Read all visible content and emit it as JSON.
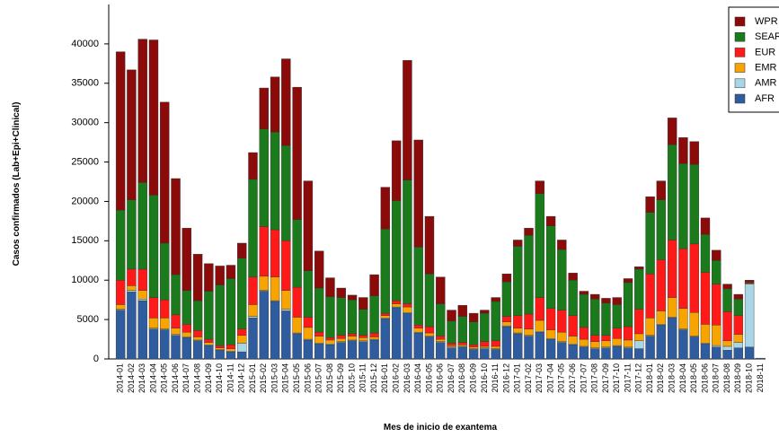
{
  "chart_data": {
    "type": "stacked_bar",
    "y_label": "Casos confirmados  (Lab+Epi+Clinical)",
    "x_label": "Mes de inicio de exantema",
    "categories": [
      "2014-01",
      "2014-02",
      "2014-03",
      "2014-04",
      "2014-05",
      "2014-06",
      "2014-07",
      "2014-08",
      "2014-09",
      "2014-10",
      "2014-11",
      "2014-12",
      "2015-01",
      "2015-02",
      "2015-03",
      "2015-04",
      "2015-05",
      "2015-06",
      "2015-07",
      "2015-08",
      "2015-09",
      "2015-10",
      "2015-11",
      "2015-12",
      "2016-01",
      "2016-02",
      "2016-03",
      "2016-04",
      "2016-05",
      "2016-06",
      "2016-07",
      "2016-08",
      "2016-09",
      "2016-10",
      "2016-11",
      "2016-12",
      "2017-01",
      "2017-02",
      "2017-03",
      "2017-04",
      "2017-05",
      "2017-06",
      "2017-07",
      "2017-08",
      "2017-09",
      "2017-10",
      "2017-11",
      "2017-12",
      "2018-01",
      "2018-02",
      "2018-03",
      "2018-04",
      "2018-05",
      "2018-06",
      "2018-07",
      "2018-08",
      "2018-09",
      "2018-10",
      "2018-11"
    ],
    "series": [
      {
        "name": "AFR",
        "color": "#2f5c9e",
        "values": [
          6200,
          8500,
          7400,
          3800,
          3700,
          3000,
          2700,
          2300,
          1700,
          1100,
          900,
          900,
          5200,
          8600,
          7300,
          6100,
          3200,
          2400,
          1900,
          1800,
          2100,
          2300,
          2200,
          2400,
          5100,
          6500,
          5800,
          3300,
          2800,
          2100,
          1400,
          1500,
          1200,
          1300,
          1200,
          4100,
          3200,
          2900,
          3400,
          2500,
          2100,
          1800,
          1500,
          1300,
          1400,
          1600,
          1400,
          1300,
          2900,
          4300,
          5200,
          3700,
          2800,
          1900,
          1500,
          1100,
          1400,
          1500,
          100
        ]
      },
      {
        "name": "AMR",
        "color": "#a9d6e6",
        "values": [
          100,
          200,
          200,
          100,
          100,
          100,
          100,
          100,
          100,
          100,
          100,
          1100,
          200,
          100,
          100,
          200,
          100,
          100,
          100,
          100,
          100,
          100,
          100,
          100,
          100,
          100,
          100,
          100,
          100,
          100,
          100,
          100,
          100,
          100,
          100,
          100,
          100,
          100,
          100,
          100,
          100,
          100,
          100,
          100,
          100,
          100,
          100,
          1000,
          100,
          100,
          100,
          100,
          100,
          100,
          200,
          500,
          700,
          8000,
          0
        ]
      },
      {
        "name": "EMR",
        "color": "#f7a300",
        "values": [
          600,
          600,
          1100,
          1300,
          1400,
          800,
          600,
          400,
          300,
          200,
          300,
          1000,
          1500,
          1800,
          3000,
          2400,
          2000,
          1500,
          900,
          500,
          400,
          500,
          400,
          300,
          300,
          400,
          700,
          500,
          400,
          300,
          200,
          200,
          200,
          200,
          300,
          500,
          600,
          800,
          1400,
          1100,
          1200,
          1000,
          900,
          800,
          800,
          900,
          900,
          900,
          2200,
          1700,
          2500,
          2600,
          3000,
          2400,
          2600,
          700,
          1000,
          100,
          0
        ]
      },
      {
        "name": "EUR",
        "color": "#ff1a1a",
        "values": [
          3100,
          2100,
          2700,
          2600,
          2300,
          1700,
          1000,
          800,
          400,
          300,
          500,
          800,
          3500,
          6300,
          6000,
          6300,
          3800,
          1300,
          500,
          300,
          400,
          300,
          300,
          500,
          300,
          400,
          400,
          400,
          800,
          400,
          300,
          300,
          300,
          600,
          700,
          700,
          1600,
          1900,
          2900,
          2700,
          2800,
          2600,
          1500,
          800,
          700,
          1300,
          1700,
          3100,
          5600,
          6500,
          7300,
          7600,
          8700,
          6600,
          5200,
          3700,
          2400,
          100,
          0
        ]
      },
      {
        "name": "SEAR",
        "color": "#1b7a1b",
        "values": [
          8900,
          8800,
          11000,
          13000,
          7200,
          5100,
          4300,
          3800,
          6100,
          7700,
          8400,
          9000,
          12400,
          12400,
          12400,
          12100,
          8600,
          5900,
          5600,
          5200,
          4800,
          4300,
          3300,
          4700,
          10700,
          12700,
          15700,
          9900,
          6700,
          4100,
          2800,
          3300,
          2900,
          3600,
          5000,
          4400,
          8800,
          10000,
          13200,
          10500,
          7700,
          4500,
          4200,
          4600,
          4100,
          3000,
          5600,
          5100,
          7800,
          7600,
          12100,
          10800,
          10100,
          4800,
          3000,
          2900,
          2100,
          100,
          0
        ]
      },
      {
        "name": "WPR",
        "color": "#8b0a0a",
        "values": [
          20100,
          16500,
          18200,
          19700,
          17900,
          12200,
          7900,
          5900,
          3500,
          2400,
          1700,
          1900,
          3400,
          5200,
          7000,
          11000,
          16800,
          11400,
          4700,
          2400,
          1200,
          600,
          1500,
          2700,
          5300,
          7600,
          15200,
          13600,
          7300,
          3400,
          1400,
          1400,
          1100,
          400,
          500,
          1000,
          800,
          900,
          1600,
          1200,
          1200,
          900,
          400,
          600,
          600,
          900,
          500,
          300,
          2000,
          2400,
          3400,
          3300,
          2900,
          2100,
          1300,
          600,
          600,
          200,
          0
        ]
      }
    ],
    "ylim": [
      0,
      45000
    ],
    "yticks": [
      0,
      5000,
      10000,
      15000,
      20000,
      25000,
      30000,
      35000,
      40000
    ],
    "grid": false,
    "legend": "top-right"
  }
}
